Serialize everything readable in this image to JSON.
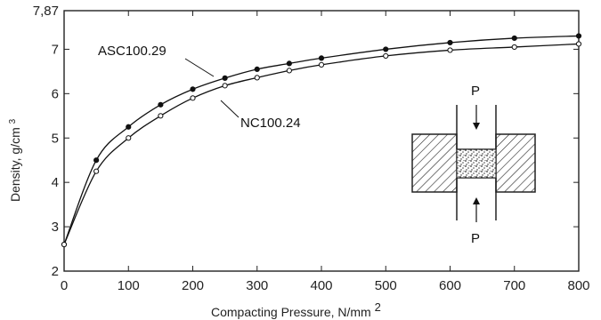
{
  "chart_data": {
    "type": "line",
    "title": "",
    "xlabel": "Compacting Pressure, N/mm",
    "xlabel_superscript": "2",
    "ylabel": "Density, g/cm",
    "ylabel_superscript": "3",
    "xlim": [
      0,
      800
    ],
    "ylim": [
      2,
      7.87
    ],
    "x_ticks": [
      "0",
      "100",
      "200",
      "300",
      "400",
      "500",
      "600",
      "700",
      "800"
    ],
    "y_ticks": [
      "2",
      "3",
      "4",
      "5",
      "6",
      "7",
      "7,87"
    ],
    "grid": false,
    "series": [
      {
        "name": "ASC100.29",
        "marker": "filled-circle",
        "x": [
          0,
          50,
          100,
          150,
          200,
          250,
          300,
          350,
          400,
          500,
          600,
          700,
          800
        ],
        "y": [
          2.6,
          4.5,
          5.25,
          5.75,
          6.1,
          6.35,
          6.55,
          6.68,
          6.8,
          7.0,
          7.15,
          7.25,
          7.3
        ]
      },
      {
        "name": "NC100.24",
        "marker": "open-circle",
        "x": [
          0,
          50,
          100,
          150,
          200,
          250,
          300,
          350,
          400,
          500,
          600,
          700,
          800
        ],
        "y": [
          2.6,
          4.25,
          5.0,
          5.5,
          5.9,
          6.18,
          6.36,
          6.52,
          6.65,
          6.85,
          6.98,
          7.05,
          7.12
        ]
      }
    ],
    "annotations": [
      {
        "text": "P",
        "target": "upper-punch"
      },
      {
        "text": "P",
        "target": "lower-punch"
      }
    ]
  }
}
